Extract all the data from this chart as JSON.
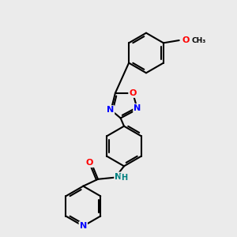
{
  "bg_color": "#ebebeb",
  "bond_color": "#000000",
  "bond_width": 1.5,
  "atom_colors": {
    "N": "#0000ff",
    "O": "#ff0000",
    "O_methoxy": "#ff0000",
    "N_pyridine": "#0000ff",
    "NH": "#008080",
    "C": "#000000"
  },
  "font_size_label": 7,
  "font_size_small": 6
}
